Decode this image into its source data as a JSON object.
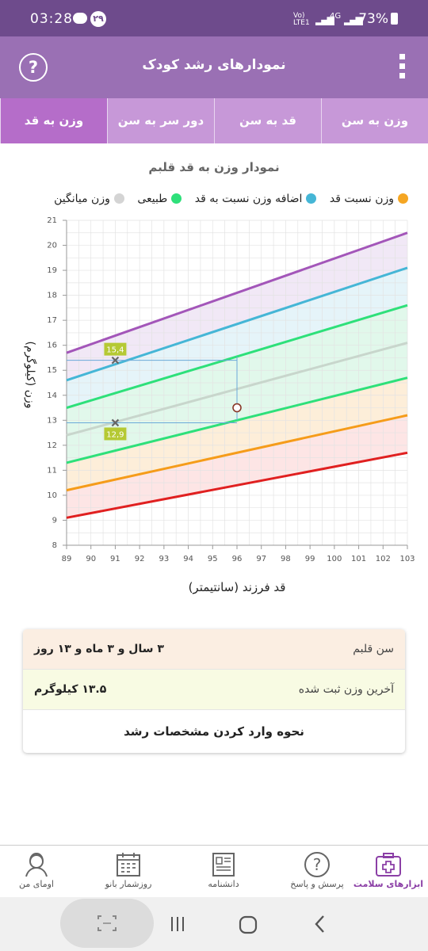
{
  "status": {
    "time": "03:28",
    "notification_count": "۲۹",
    "network_top": "Vo)",
    "network_bottom": "LTE1",
    "signal_label": "4G",
    "battery": "73%"
  },
  "app": {
    "title": "نمودارهای رشد کودک"
  },
  "tabs": [
    "وزن به سن",
    "قد به سن",
    "دور سر به سن",
    "وزن به قد"
  ],
  "chart_title": "نمودار وزن به قد قلبم",
  "legend": [
    {
      "label": "وزن نسبت قد",
      "color": "#f5a623"
    },
    {
      "label": "اضافه وزن نسبت به قد",
      "color": "#45b6d6"
    },
    {
      "label": "طبیعی",
      "color": "#2ee07a"
    },
    {
      "label": "وزن میانگین",
      "color": "#d4d4d4"
    }
  ],
  "chart_data": {
    "type": "line",
    "xlabel": "قد فرزند (سانتیمتر)",
    "ylabel": "وزن (کیلوگرم)",
    "xlim": [
      89,
      103
    ],
    "ylim": [
      8,
      21
    ],
    "x_ticks": [
      "89",
      "90",
      "91",
      "92",
      "93",
      "94",
      "95",
      "96",
      "97",
      "98",
      "99",
      "100",
      "101",
      "102",
      "103"
    ],
    "y_ticks": [
      "8",
      "9",
      "10",
      "11",
      "12",
      "13",
      "14",
      "15",
      "16",
      "17",
      "18",
      "19",
      "20",
      "21"
    ],
    "grid": true,
    "series": [
      {
        "color": "#e02020",
        "fill": "#fde0e0",
        "points": [
          [
            89,
            9.1
          ],
          [
            103,
            11.7
          ]
        ]
      },
      {
        "color": "#f59c1a",
        "fill": "#fdebd2",
        "points": [
          [
            89,
            10.2
          ],
          [
            103,
            13.2
          ]
        ]
      },
      {
        "color": "#2ee07a",
        "fill": "#dcf7e8",
        "points": [
          [
            89,
            11.3
          ],
          [
            103,
            14.7
          ]
        ]
      },
      {
        "color": "#c8d6cc",
        "fill": "#dcf7e8",
        "points": [
          [
            89,
            12.4
          ],
          [
            103,
            16.1
          ]
        ]
      },
      {
        "color": "#2ee07a",
        "fill": "#e0f2f8",
        "points": [
          [
            89,
            13.5
          ],
          [
            103,
            17.6
          ]
        ]
      },
      {
        "color": "#45b6d6",
        "fill": "#efe4f4",
        "points": [
          [
            89,
            14.6
          ],
          [
            103,
            19.1
          ]
        ]
      },
      {
        "color": "#a356b9",
        "fill": null,
        "points": [
          [
            89,
            15.7
          ],
          [
            103,
            20.5
          ]
        ]
      }
    ],
    "reference_markers": [
      {
        "x": 91,
        "y": 15.4,
        "label": "15,4"
      },
      {
        "x": 91,
        "y": 12.9,
        "label": "12,9"
      }
    ],
    "child_point": {
      "x": 96,
      "y": 13.5
    }
  },
  "info": {
    "age_label": "سن قلبم",
    "age_value": "۳ سال و ۳ ماه و ۱۳ روز",
    "weight_label": "آخرین وزن ثبت شده",
    "weight_value": "۱۳.۵ کیلوگرم",
    "howto": "نحوه وارد کردن مشخصات رشد"
  },
  "bottom_nav": [
    {
      "label": "ابزارهای سلامت",
      "icon": "health-kit-icon",
      "active": true
    },
    {
      "label": "پرسش و پاسخ",
      "icon": "question-icon",
      "active": false
    },
    {
      "label": "دانشنامه",
      "icon": "encyclopedia-icon",
      "active": false
    },
    {
      "label": "روزشمار بانو",
      "icon": "calendar-icon",
      "active": false
    },
    {
      "label": "اومای من",
      "icon": "profile-icon",
      "active": false
    }
  ]
}
